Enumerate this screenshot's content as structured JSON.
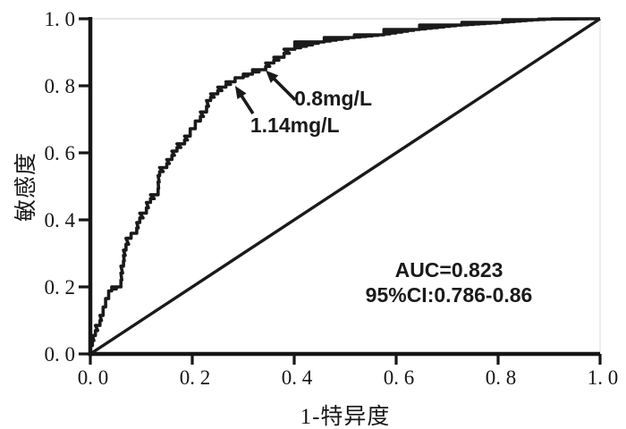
{
  "figure": {
    "background": "#ffffff",
    "curve_color": "#1a1a1a",
    "axis_color": "#161616",
    "faint_border_color": "#dedede"
  },
  "chart_data": {
    "type": "line",
    "subtype": "roc-curve",
    "title": "",
    "xlabel": "1-特异度",
    "ylabel": "敏感度",
    "xlim": [
      0.0,
      1.0
    ],
    "ylim": [
      0.0,
      1.0
    ],
    "grid": false,
    "legend": "none",
    "x_ticks": [
      0.0,
      0.2,
      0.4,
      0.6,
      0.8,
      1.0
    ],
    "x_tick_labels": [
      "0. 0",
      "0. 2",
      "0. 4",
      "0. 6",
      "0. 8",
      "1. 0"
    ],
    "y_ticks": [
      0.0,
      0.2,
      0.4,
      0.6,
      0.8,
      1.0
    ],
    "y_tick_labels": [
      "0. 0",
      "0. 2",
      "0. 4",
      "0. 6",
      "0. 8",
      "1. 0"
    ],
    "series": [
      {
        "name": "ROC curve",
        "style": "step",
        "points": [
          [
            0.0,
            0.0
          ],
          [
            0.004,
            0.025
          ],
          [
            0.01,
            0.055
          ],
          [
            0.019,
            0.085
          ],
          [
            0.025,
            0.115
          ],
          [
            0.03,
            0.14
          ],
          [
            0.036,
            0.165
          ],
          [
            0.042,
            0.188
          ],
          [
            0.06,
            0.2
          ],
          [
            0.065,
            0.262
          ],
          [
            0.07,
            0.31
          ],
          [
            0.08,
            0.345
          ],
          [
            0.091,
            0.36
          ],
          [
            0.097,
            0.392
          ],
          [
            0.11,
            0.42
          ],
          [
            0.118,
            0.452
          ],
          [
            0.133,
            0.475
          ],
          [
            0.136,
            0.532
          ],
          [
            0.15,
            0.556
          ],
          [
            0.16,
            0.58
          ],
          [
            0.17,
            0.605
          ],
          [
            0.185,
            0.627
          ],
          [
            0.196,
            0.65
          ],
          [
            0.206,
            0.672
          ],
          [
            0.216,
            0.695
          ],
          [
            0.228,
            0.722
          ],
          [
            0.236,
            0.756
          ],
          [
            0.25,
            0.776
          ],
          [
            0.266,
            0.796
          ],
          [
            0.284,
            0.812
          ],
          [
            0.3,
            0.824
          ],
          [
            0.318,
            0.835
          ],
          [
            0.344,
            0.848
          ],
          [
            0.36,
            0.868
          ],
          [
            0.38,
            0.885
          ],
          [
            0.401,
            0.909
          ],
          [
            0.459,
            0.931
          ],
          [
            0.518,
            0.944
          ],
          [
            0.576,
            0.952
          ],
          [
            0.646,
            0.968
          ],
          [
            0.729,
            0.981
          ],
          [
            0.809,
            0.989
          ],
          [
            0.879,
            0.997
          ],
          [
            0.905,
            0.999
          ],
          [
            1.0,
            1.0
          ]
        ]
      },
      {
        "name": "Reference diagonal",
        "style": "straight",
        "points": [
          [
            0.0,
            0.0
          ],
          [
            1.0,
            1.0
          ]
        ]
      }
    ],
    "annotations": [
      {
        "text": "0.8mg/L",
        "point": [
          0.344,
          0.846
        ]
      },
      {
        "text": "1.14mg/L",
        "point": [
          0.284,
          0.8
        ]
      }
    ],
    "stats": {
      "auc": "AUC=0.823",
      "ci": "95%CI:0.786-0.86"
    }
  }
}
